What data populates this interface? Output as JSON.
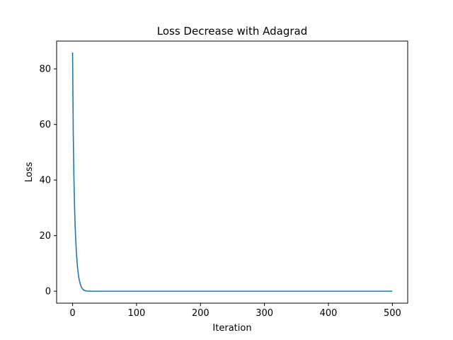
{
  "chart_data": {
    "type": "line",
    "title": "Loss Decrease with Adagrad",
    "xlabel": "Iteration",
    "ylabel": "Loss",
    "xlim": [
      -24.95,
      523.95
    ],
    "ylim": [
      -4.3,
      90.0
    ],
    "x_ticks": [
      0,
      100,
      200,
      300,
      400,
      500
    ],
    "x_tick_labels": [
      "0",
      "100",
      "200",
      "300",
      "400",
      "500"
    ],
    "y_ticks": [
      0,
      20,
      40,
      60,
      80
    ],
    "y_tick_labels": [
      "0",
      "20",
      "40",
      "60",
      "80"
    ],
    "grid": false,
    "legend": "none",
    "series": [
      {
        "color": "#1f77b4",
        "x": [
          0,
          1,
          2,
          3,
          4,
          5,
          6,
          7,
          8,
          9,
          10,
          11,
          12,
          13,
          14,
          15,
          16,
          18,
          20,
          22,
          25,
          28,
          32,
          40,
          60,
          100,
          200,
          300,
          400,
          499
        ],
        "y": [
          85.7,
          58.0,
          42.0,
          31.0,
          23.5,
          18.0,
          13.8,
          10.5,
          8.0,
          6.1,
          4.6,
          3.5,
          2.6,
          1.9,
          1.4,
          1.0,
          0.7,
          0.35,
          0.17,
          0.08,
          0.03,
          0.01,
          0.0,
          0.0,
          0.0,
          0.0,
          0.0,
          0.0,
          0.0,
          0.0
        ]
      }
    ]
  }
}
